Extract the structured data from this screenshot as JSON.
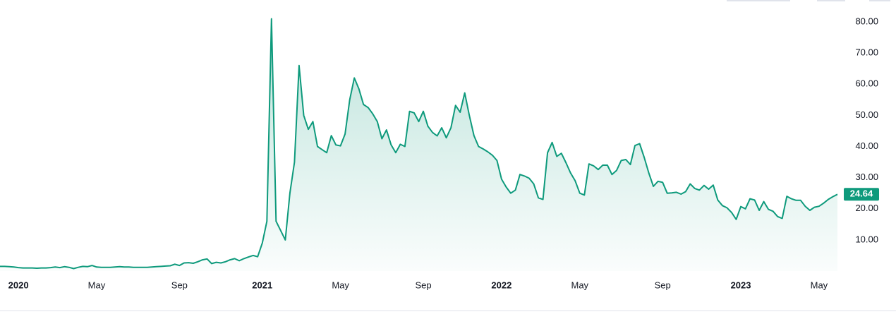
{
  "chart_data": {
    "type": "line",
    "series": [
      {
        "color": "#0e9a7c",
        "values": [
          1.5,
          1.5,
          1.4,
          1.3,
          1.1,
          1.0,
          1.0,
          1.0,
          0.9,
          1.0,
          1.0,
          1.1,
          1.3,
          1.1,
          1.4,
          1.2,
          0.8,
          1.2,
          1.5,
          1.4,
          1.8,
          1.3,
          1.2,
          1.2,
          1.2,
          1.3,
          1.4,
          1.3,
          1.3,
          1.2,
          1.2,
          1.2,
          1.2,
          1.3,
          1.4,
          1.5,
          1.6,
          1.7,
          2.2,
          1.8,
          2.6,
          2.7,
          2.5,
          3.0,
          3.6,
          3.9,
          2.4,
          2.8,
          2.6,
          3.0,
          3.6,
          4.0,
          3.3,
          4.0,
          4.5,
          5.0,
          4.6,
          9,
          16,
          81,
          16,
          13,
          10,
          25,
          35,
          66,
          50,
          45.5,
          48,
          40,
          39,
          38,
          43.5,
          40.5,
          40.2,
          44,
          55,
          62,
          58.5,
          53.5,
          52.5,
          50.5,
          48,
          42.5,
          45.3,
          40.5,
          38,
          40.7,
          40,
          51.3,
          50.8,
          48,
          51.3,
          46.5,
          44.5,
          43.4,
          46,
          42.8,
          46,
          53.2,
          51,
          57.2,
          50,
          43.5,
          40,
          39.2,
          38.3,
          37.2,
          35.5,
          29.5,
          27,
          25,
          26,
          31,
          30.5,
          29.8,
          28,
          23.5,
          23,
          38,
          41.3,
          36.8,
          37.8,
          34.8,
          31.5,
          29,
          25,
          24.4,
          34.4,
          33.8,
          32.6,
          34,
          34,
          31,
          32.3,
          35.5,
          35.8,
          34.2,
          40.3,
          40.9,
          36.5,
          31.5,
          27.2,
          28.8,
          28.5,
          25,
          25.1,
          25.3,
          24.7,
          25.5,
          28,
          26.5,
          26,
          27.5,
          26.3,
          27.6,
          22.8,
          21,
          20.3,
          18.8,
          16.6,
          20.7,
          20,
          23.2,
          22.8,
          19.5,
          22.3,
          19.8,
          19.2,
          17.5,
          16.9,
          24,
          23.2,
          22.7,
          22.7,
          20.8,
          19.5,
          20.5,
          20.8,
          21.8,
          23,
          23.9,
          24.64
        ],
        "value_labels": {
          "182": "24.64"
        }
      }
    ],
    "xlim": [
      0,
      182
    ],
    "xticks": [
      {
        "value": 4,
        "label": "2020"
      },
      {
        "value": 21,
        "label": "May"
      },
      {
        "value": 39,
        "label": "Sep"
      },
      {
        "value": 57,
        "label": "2021"
      },
      {
        "value": 74,
        "label": "May"
      },
      {
        "value": 92,
        "label": "Sep"
      },
      {
        "value": 109,
        "label": "2022"
      },
      {
        "value": 126,
        "label": "May"
      },
      {
        "value": 144,
        "label": "Sep"
      },
      {
        "value": 161,
        "label": "2023"
      },
      {
        "value": 178,
        "label": "May"
      }
    ],
    "ylim": [
      0,
      82.5
    ],
    "yticks": [
      {
        "value": 10,
        "label": "10.00"
      },
      {
        "value": 20,
        "label": "20.00"
      },
      {
        "value": 30,
        "label": "30.00"
      },
      {
        "value": 40,
        "label": "40.00"
      },
      {
        "value": 50,
        "label": "50.00"
      },
      {
        "value": 60,
        "label": "60.00"
      },
      {
        "value": 70,
        "label": "70.00"
      },
      {
        "value": 80,
        "label": "80.00"
      }
    ]
  }
}
